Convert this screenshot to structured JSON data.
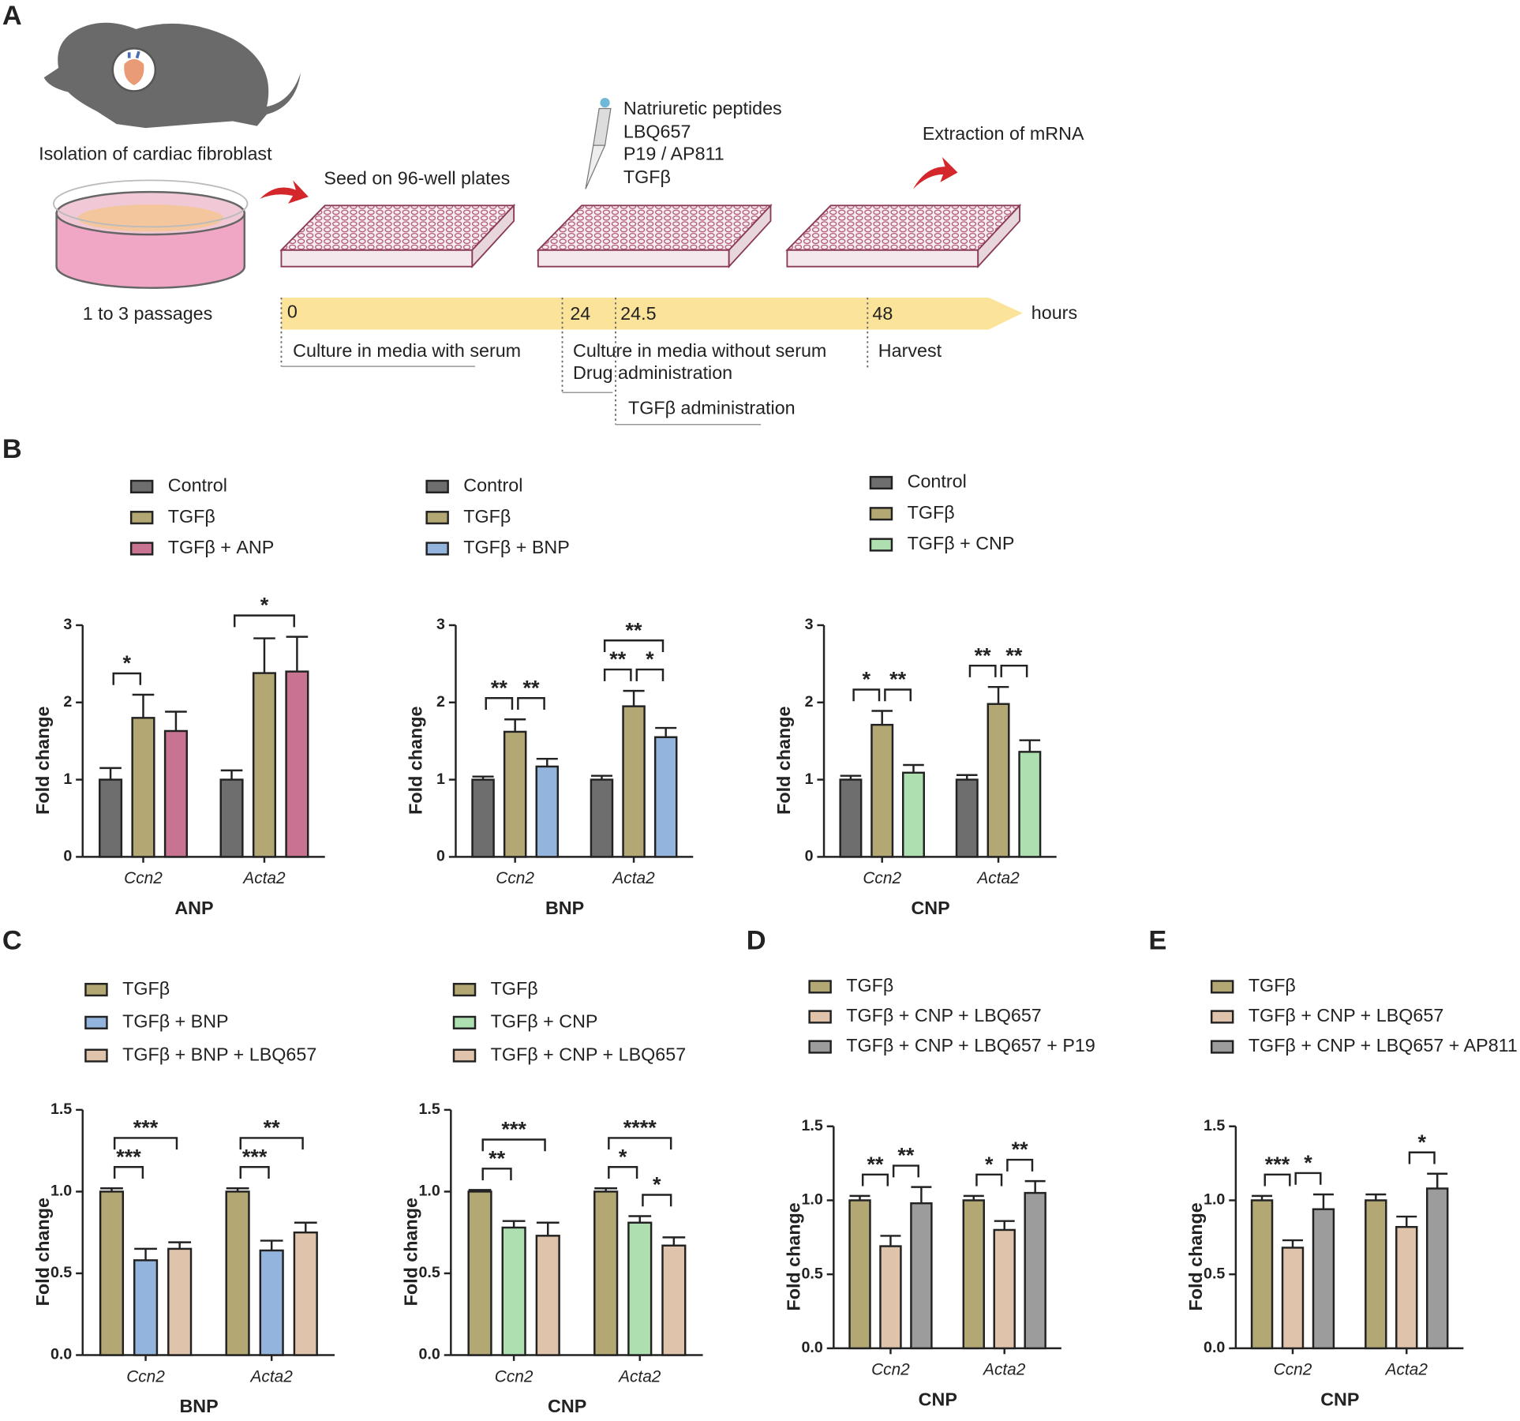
{
  "panel_labels": [
    "A",
    "B",
    "C",
    "D",
    "E"
  ],
  "diagram": {
    "isolation": "Isolation of cardiac fibroblast",
    "passages": "1 to 3 passages",
    "seed": "Seed on 96-well plates",
    "treatments": [
      "Natriuretic peptides",
      "LBQ657",
      "P19 / AP811",
      "TGFβ"
    ],
    "extraction": "Extraction of mRNA",
    "timeline": [
      "0",
      "24",
      "24.5",
      "48"
    ],
    "unit": "hours",
    "phase_serum": "Culture in media with serum",
    "phase_no_serum": "Culture in media without serum",
    "phase_drug": "Drug administration",
    "phase_tgf": "TGFβ administration",
    "phase_harvest": "Harvest"
  },
  "chart_data": [
    {
      "type": "bar",
      "xlabel": "ANP",
      "ylabel": "Fold change",
      "categories": [
        "Ccn2",
        "Acta2"
      ],
      "series": [
        {
          "name": "Control",
          "color": "#6e6e6e",
          "values": [
            1.0,
            1.0
          ],
          "errors": [
            0.15,
            0.12
          ]
        },
        {
          "name": "TGFβ",
          "color": "#b3a774",
          "values": [
            1.8,
            2.38
          ],
          "errors": [
            0.3,
            0.45
          ]
        },
        {
          "name": "TGFβ + ANP",
          "color": "#c97393",
          "values": [
            1.63,
            2.4
          ],
          "errors": [
            0.25,
            0.45
          ]
        }
      ],
      "ylim": [
        0,
        3
      ],
      "yticks": [
        0,
        1,
        2,
        3
      ],
      "annotations": [
        {
          "text": "*",
          "category": 0,
          "between": [
            0,
            1
          ]
        },
        {
          "text": "*",
          "category": 1,
          "between": [
            0,
            2
          ]
        }
      ]
    },
    {
      "type": "bar",
      "xlabel": "BNP",
      "ylabel": "Fold change",
      "categories": [
        "Ccn2",
        "Acta2"
      ],
      "series": [
        {
          "name": "Control",
          "color": "#6e6e6e",
          "values": [
            1.0,
            1.0
          ],
          "errors": [
            0.04,
            0.05
          ]
        },
        {
          "name": "TGFβ",
          "color": "#b3a774",
          "values": [
            1.62,
            1.95
          ],
          "errors": [
            0.16,
            0.2
          ]
        },
        {
          "name": "TGFβ + BNP",
          "color": "#93b4dd",
          "values": [
            1.17,
            1.55
          ],
          "errors": [
            0.1,
            0.12
          ]
        }
      ],
      "ylim": [
        0,
        3
      ],
      "yticks": [
        0,
        1,
        2,
        3
      ],
      "annotations": [
        {
          "text": "**",
          "category": 0,
          "between": [
            0,
            1
          ]
        },
        {
          "text": "**",
          "category": 0,
          "between": [
            1,
            2
          ]
        },
        {
          "text": "**",
          "category": 1,
          "between": [
            0,
            1
          ]
        },
        {
          "text": "*",
          "category": 1,
          "between": [
            1,
            2
          ]
        },
        {
          "text": "**",
          "category": 1,
          "between": [
            0,
            2
          ]
        }
      ]
    },
    {
      "type": "bar",
      "xlabel": "CNP",
      "ylabel": "Fold change",
      "categories": [
        "Ccn2",
        "Acta2"
      ],
      "series": [
        {
          "name": "Control",
          "color": "#6e6e6e",
          "values": [
            1.0,
            1.0
          ],
          "errors": [
            0.05,
            0.06
          ]
        },
        {
          "name": "TGFβ",
          "color": "#b3a774",
          "values": [
            1.71,
            1.98
          ],
          "errors": [
            0.18,
            0.22
          ]
        },
        {
          "name": "TGFβ + CNP",
          "color": "#addfb0",
          "values": [
            1.09,
            1.36
          ],
          "errors": [
            0.1,
            0.15
          ]
        }
      ],
      "ylim": [
        0,
        3
      ],
      "yticks": [
        0,
        1,
        2,
        3
      ],
      "annotations": [
        {
          "text": "*",
          "category": 0,
          "between": [
            0,
            1
          ]
        },
        {
          "text": "**",
          "category": 0,
          "between": [
            1,
            2
          ]
        },
        {
          "text": "**",
          "category": 1,
          "between": [
            0,
            1
          ]
        },
        {
          "text": "**",
          "category": 1,
          "between": [
            1,
            2
          ]
        }
      ]
    },
    {
      "type": "bar",
      "xlabel": "BNP",
      "ylabel": "Fold change",
      "categories": [
        "Ccn2",
        "Acta2"
      ],
      "series": [
        {
          "name": "TGFβ",
          "color": "#b3a774",
          "values": [
            1.0,
            1.0
          ],
          "errors": [
            0.02,
            0.02
          ]
        },
        {
          "name": "TGFβ + BNP",
          "color": "#93b4dd",
          "values": [
            0.58,
            0.64
          ],
          "errors": [
            0.07,
            0.06
          ]
        },
        {
          "name": "TGFβ + BNP + LBQ657",
          "color": "#dfc3aa",
          "values": [
            0.65,
            0.75
          ],
          "errors": [
            0.04,
            0.06
          ]
        }
      ],
      "ylim": [
        0,
        1.5
      ],
      "yticks": [
        {
          "value": 0,
          "label": "0.0"
        },
        {
          "value": 0.5,
          "label": "0.5"
        },
        {
          "value": 1,
          "label": "1.0"
        },
        {
          "value": 1.5,
          "label": "1.5"
        }
      ],
      "annotations": [
        {
          "text": "***",
          "category": 0,
          "between": [
            0,
            1
          ]
        },
        {
          "text": "***",
          "category": 0,
          "between": [
            0,
            2
          ]
        },
        {
          "text": "***",
          "category": 1,
          "between": [
            0,
            1
          ]
        },
        {
          "text": "**",
          "category": 1,
          "between": [
            0,
            2
          ]
        }
      ]
    },
    {
      "type": "bar",
      "xlabel": "CNP",
      "ylabel": "Fold change",
      "categories": [
        "Ccn2",
        "Acta2"
      ],
      "series": [
        {
          "name": "TGFβ",
          "color": "#b3a774",
          "values": [
            1.0,
            1.0
          ],
          "errors": [
            0.01,
            0.02
          ]
        },
        {
          "name": "TGFβ + CNP",
          "color": "#addfb0",
          "values": [
            0.78,
            0.81
          ],
          "errors": [
            0.04,
            0.04
          ]
        },
        {
          "name": "TGFβ + CNP + LBQ657",
          "color": "#dfc3aa",
          "values": [
            0.73,
            0.67
          ],
          "errors": [
            0.08,
            0.05
          ]
        }
      ],
      "ylim": [
        0,
        1.5
      ],
      "yticks": [
        {
          "value": 0,
          "label": "0.0"
        },
        {
          "value": 0.5,
          "label": "0.5"
        },
        {
          "value": 1,
          "label": "1.0"
        },
        {
          "value": 1.5,
          "label": "1.5"
        }
      ],
      "annotations": [
        {
          "text": "**",
          "category": 0,
          "between": [
            0,
            1
          ]
        },
        {
          "text": "***",
          "category": 0,
          "between": [
            0,
            2
          ]
        },
        {
          "text": "*",
          "category": 1,
          "between": [
            0,
            1
          ]
        },
        {
          "text": "*",
          "category": 1,
          "between": [
            1,
            2
          ]
        },
        {
          "text": "****",
          "category": 1,
          "between": [
            0,
            2
          ]
        }
      ]
    },
    {
      "type": "bar",
      "xlabel": "CNP",
      "ylabel": "Fold change",
      "categories": [
        "Ccn2",
        "Acta2"
      ],
      "series": [
        {
          "name": "TGFβ",
          "color": "#b3a774",
          "values": [
            1.0,
            1.0
          ],
          "errors": [
            0.03,
            0.03
          ]
        },
        {
          "name": "TGFβ + CNP + LBQ657",
          "color": "#dfc3aa",
          "values": [
            0.69,
            0.8
          ],
          "errors": [
            0.07,
            0.06
          ]
        },
        {
          "name": "TGFβ + CNP + LBQ657 + P19",
          "color": "#9c9c9c",
          "values": [
            0.98,
            1.05
          ],
          "errors": [
            0.11,
            0.08
          ]
        }
      ],
      "ylim": [
        0,
        1.5
      ],
      "yticks": [
        {
          "value": 0,
          "label": "0.0"
        },
        {
          "value": 0.5,
          "label": "0.5"
        },
        {
          "value": 1,
          "label": "1.0"
        },
        {
          "value": 1.5,
          "label": "1.5"
        }
      ],
      "annotations": [
        {
          "text": "**",
          "category": 0,
          "between": [
            0,
            1
          ]
        },
        {
          "text": "**",
          "category": 0,
          "between": [
            1,
            2
          ]
        },
        {
          "text": "*",
          "category": 1,
          "between": [
            0,
            1
          ]
        },
        {
          "text": "**",
          "category": 1,
          "between": [
            1,
            2
          ]
        }
      ]
    },
    {
      "type": "bar",
      "xlabel": "CNP",
      "ylabel": "Fold change",
      "categories": [
        "Ccn2",
        "Acta2"
      ],
      "series": [
        {
          "name": "TGFβ",
          "color": "#b3a774",
          "values": [
            1.0,
            1.0
          ],
          "errors": [
            0.03,
            0.04
          ]
        },
        {
          "name": "TGFβ + CNP + LBQ657",
          "color": "#dfc3aa",
          "values": [
            0.68,
            0.82
          ],
          "errors": [
            0.05,
            0.07
          ]
        },
        {
          "name": "TGFβ + CNP + LBQ657 + AP811",
          "color": "#9c9c9c",
          "values": [
            0.94,
            1.08
          ],
          "errors": [
            0.1,
            0.1
          ]
        }
      ],
      "ylim": [
        0,
        1.5
      ],
      "yticks": [
        {
          "value": 0,
          "label": "0.0"
        },
        {
          "value": 0.5,
          "label": "0.5"
        },
        {
          "value": 1,
          "label": "1.0"
        },
        {
          "value": 1.5,
          "label": "1.5"
        }
      ],
      "annotations": [
        {
          "text": "***",
          "category": 0,
          "between": [
            0,
            1
          ]
        },
        {
          "text": "*",
          "category": 0,
          "between": [
            1,
            2
          ]
        },
        {
          "text": "*",
          "category": 1,
          "between": [
            1,
            2
          ]
        }
      ]
    }
  ]
}
